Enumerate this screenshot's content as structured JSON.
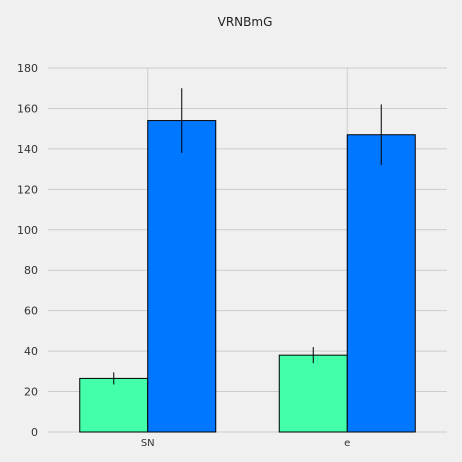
{
  "chart_data": {
    "type": "bar",
    "title": "VRNBmG",
    "xlabel": "",
    "ylabel": "",
    "categories": [
      "SN",
      "e"
    ],
    "series": [
      {
        "values": [
          26.5,
          38
        ],
        "errors": [
          3,
          4
        ],
        "color": "#44ffaa"
      },
      {
        "values": [
          154,
          147
        ],
        "errors": [
          16,
          15
        ],
        "color": "#0077ff"
      }
    ],
    "ylim": [
      0,
      180
    ],
    "yticks": [
      0,
      20,
      40,
      60,
      80,
      100,
      120,
      140,
      160,
      180
    ],
    "grid": true
  }
}
